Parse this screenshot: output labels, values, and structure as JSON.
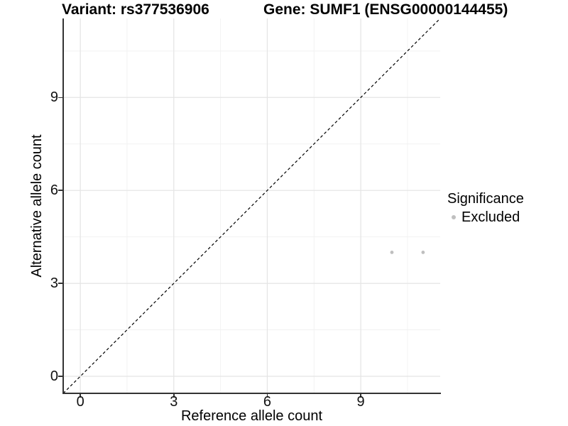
{
  "chart_data": {
    "type": "scatter",
    "title_left": "Variant: rs377536906",
    "title_right": "Gene: SUMF1 (ENSG00000144455)",
    "xlabel": "Reference allele count",
    "ylabel": "Alternative allele count",
    "xlim": [
      -0.55,
      11.55
    ],
    "ylim": [
      -0.55,
      11.55
    ],
    "x_ticks": [
      0,
      3,
      6,
      9
    ],
    "y_ticks": [
      0,
      3,
      6,
      9
    ],
    "x_minor_breaks": [
      1.5,
      4.5,
      7.5,
      10.5
    ],
    "y_minor_breaks": [
      1.5,
      4.5,
      7.5,
      10.5
    ],
    "grid": true,
    "identity_line": {
      "style": "dashed",
      "color": "#000000"
    },
    "series": [
      {
        "name": "Excluded",
        "color": "#BFBFBF",
        "points": [
          {
            "x": 10,
            "y": 4
          },
          {
            "x": 11,
            "y": 4
          }
        ]
      }
    ],
    "legend": {
      "title": "Significance",
      "position": "right",
      "items": [
        {
          "label": "Excluded",
          "color": "#BFBFBF"
        }
      ]
    },
    "style": {
      "grid_major_color": "#E4E4E4",
      "grid_minor_color": "#F2F2F2",
      "axis_line_color": "#333333",
      "background_color": "#FFFFFF",
      "point_radius": 2.4
    }
  }
}
